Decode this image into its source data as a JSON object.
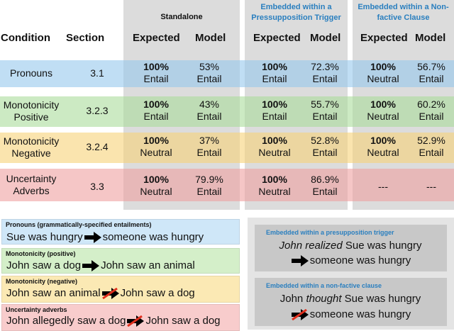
{
  "colors": {
    "pronouns": "#bcd9f0",
    "pronouns_example": "#cfe7f8",
    "mono_pos": "#c5e3bc",
    "mono_pos_example": "#d4efc9",
    "mono_neg": "#f6dfa3",
    "mono_neg_example": "#fbe9b4",
    "uncertainty": "#f1bcbc",
    "uncertainty_example": "#f8cccc",
    "gray_column": "#dcdcdc",
    "emb_box": "#cfcfcf",
    "accent_blue": "#2a7fbf",
    "strike_red": "#e0301e"
  },
  "headers": {
    "condition": "Condition",
    "section": "Section",
    "standalone": "Standalone",
    "presupposition": "Embedded within a Pressupposition Trigger",
    "nonfactive": "Embedded within a Non-factive Clause",
    "expected": "Expected",
    "model": "Model"
  },
  "rows": [
    {
      "condition": [
        "Pronouns"
      ],
      "section": "3.1",
      "standalone": {
        "exp_pct": "100%",
        "exp_label": "Entail",
        "model_pct": "53%",
        "model_label": "Entail"
      },
      "presup": {
        "exp_pct": "100%",
        "exp_label": "Entail",
        "model_pct": "72.3%",
        "model_label": "Entail"
      },
      "nonfactive": {
        "exp_pct": "100%",
        "exp_label": "Neutral",
        "model_pct": "56.7%",
        "model_label": "Entail"
      }
    },
    {
      "condition": [
        "Monotonicity",
        "Positive"
      ],
      "section": "3.2.3",
      "standalone": {
        "exp_pct": "100%",
        "exp_label": "Entail",
        "model_pct": "43%",
        "model_label": "Entail"
      },
      "presup": {
        "exp_pct": "100%",
        "exp_label": "Entail",
        "model_pct": "55.7%",
        "model_label": "Entail"
      },
      "nonfactive": {
        "exp_pct": "100%",
        "exp_label": "Neutral",
        "model_pct": "60.2%",
        "model_label": "Entail"
      }
    },
    {
      "condition": [
        "Monotonicity",
        "Negative"
      ],
      "section": "3.2.4",
      "standalone": {
        "exp_pct": "100%",
        "exp_label": "Neutral",
        "model_pct": "37%",
        "model_label": "Entail"
      },
      "presup": {
        "exp_pct": "100%",
        "exp_label": "Neutral",
        "model_pct": "52.8%",
        "model_label": "Entail"
      },
      "nonfactive": {
        "exp_pct": "100%",
        "exp_label": "Neutral",
        "model_pct": "52.9%",
        "model_label": "Entail"
      }
    },
    {
      "condition": [
        "Uncertainty",
        "Adverbs"
      ],
      "section": "3.3",
      "standalone": {
        "exp_pct": "100%",
        "exp_label": "Neutral",
        "model_pct": "79.9%",
        "model_label": "Entail"
      },
      "presup": {
        "exp_pct": "100%",
        "exp_label": "Neutral",
        "model_pct": "86.9%",
        "model_label": "Entail"
      },
      "nonfactive": {
        "exp_dash": "---",
        "model_dash": "---"
      }
    }
  ],
  "examples": [
    {
      "title": "Pronouns (grammatically-specified entailments)",
      "left": "Sue was hungry",
      "right": "someone was hungry",
      "negated": false
    },
    {
      "title": "Monotonicity (positive)",
      "left": "John saw a dog",
      "right": "John saw an animal",
      "negated": false
    },
    {
      "title": "Monotonicity (negative)",
      "left": "John saw an animal",
      "right": "John saw a dog",
      "negated": true
    },
    {
      "title": "Uncertainty adverbs",
      "left": "John allegedly saw a dog",
      "right": "John saw a dog",
      "negated": true
    }
  ],
  "embedded_examples": [
    {
      "title": "Embedded within a presupposition trigger",
      "line1_italic": "John realized",
      "line1_rest": " Sue was hungry",
      "line2": "someone was hungry",
      "negated": false
    },
    {
      "title": "Embedded within a non-factive clause",
      "line1_prefix": "John ",
      "line1_italic": "thought",
      "line1_rest": " Sue was hungry",
      "line2": "someone was hungry",
      "negated": true
    }
  ]
}
